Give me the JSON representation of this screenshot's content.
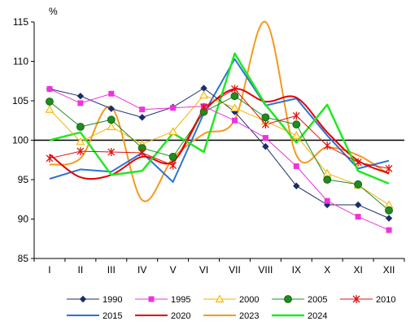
{
  "chart_data": {
    "type": "line",
    "y_unit_label": "%",
    "categories": [
      "I",
      "II",
      "III",
      "IV",
      "V",
      "VI",
      "VII",
      "VIII",
      "IX",
      "X",
      "XI",
      "XII"
    ],
    "ylim": [
      85,
      115
    ],
    "yticks": [
      85,
      90,
      95,
      100,
      105,
      110,
      115
    ],
    "grid": false,
    "reference_line": 100,
    "legend_position": "bottom",
    "series": [
      {
        "name": "1990",
        "color": "#1a2d6b",
        "marker": "diamond",
        "smooth": false,
        "width": 1,
        "values": [
          106.5,
          105.6,
          104.0,
          102.9,
          104.2,
          106.6,
          103.6,
          99.2,
          94.2,
          91.8,
          91.8,
          90.1
        ]
      },
      {
        "name": "1995",
        "color": "#ee33dd",
        "marker": "square",
        "smooth": false,
        "width": 1,
        "values": [
          106.5,
          104.7,
          105.9,
          103.9,
          104.1,
          104.3,
          102.5,
          100.3,
          96.7,
          92.3,
          90.3,
          88.6
        ]
      },
      {
        "name": "2000",
        "color": "#f5b000",
        "marker": "triangle",
        "smooth": false,
        "width": 1,
        "values": [
          103.9,
          99.8,
          101.7,
          99.5,
          101.1,
          105.7,
          104.1,
          102.4,
          100.6,
          95.8,
          94.3,
          91.8
        ]
      },
      {
        "name": "2005",
        "color": "#1e8c1e",
        "marker": "circle",
        "smooth": false,
        "width": 1,
        "values": [
          104.9,
          101.7,
          102.6,
          99.0,
          97.9,
          103.6,
          105.6,
          102.9,
          102.0,
          95.0,
          94.4,
          91.1
        ]
      },
      {
        "name": "2010",
        "color": "#e01010",
        "marker": "star",
        "smooth": false,
        "width": 1,
        "values": [
          97.7,
          98.6,
          98.5,
          98.4,
          96.8,
          104.2,
          106.5,
          102.0,
          103.1,
          99.3,
          97.2,
          96.4
        ]
      },
      {
        "name": "2015",
        "color": "#2a73d6",
        "marker": "none",
        "smooth": false,
        "width": 2,
        "values": [
          95.1,
          96.3,
          96.0,
          98.4,
          94.7,
          103.4,
          110.3,
          104.4,
          105.3,
          100.6,
          96.4,
          97.4
        ]
      },
      {
        "name": "2020",
        "color": "#e30000",
        "marker": "none",
        "smooth": true,
        "width": 2,
        "values": [
          98.2,
          95.3,
          95.6,
          97.9,
          97.3,
          103.6,
          106.5,
          104.9,
          105.4,
          101.0,
          97.4,
          95.8
        ]
      },
      {
        "name": "2023",
        "color": "#f39a1c",
        "marker": "none",
        "smooth": true,
        "width": 2,
        "values": [
          96.9,
          97.7,
          104.2,
          92.4,
          97.7,
          100.8,
          102.6,
          115.0,
          98.1,
          99.1,
          98.1,
          95.7
        ]
      },
      {
        "name": "2024",
        "color": "#22e822",
        "marker": "none",
        "smooth": false,
        "width": 2.5,
        "values": [
          100.0,
          101.0,
          95.6,
          96.1,
          100.9,
          98.5,
          111.0,
          104.5,
          99.7,
          104.5,
          96.1,
          94.5
        ]
      }
    ]
  }
}
